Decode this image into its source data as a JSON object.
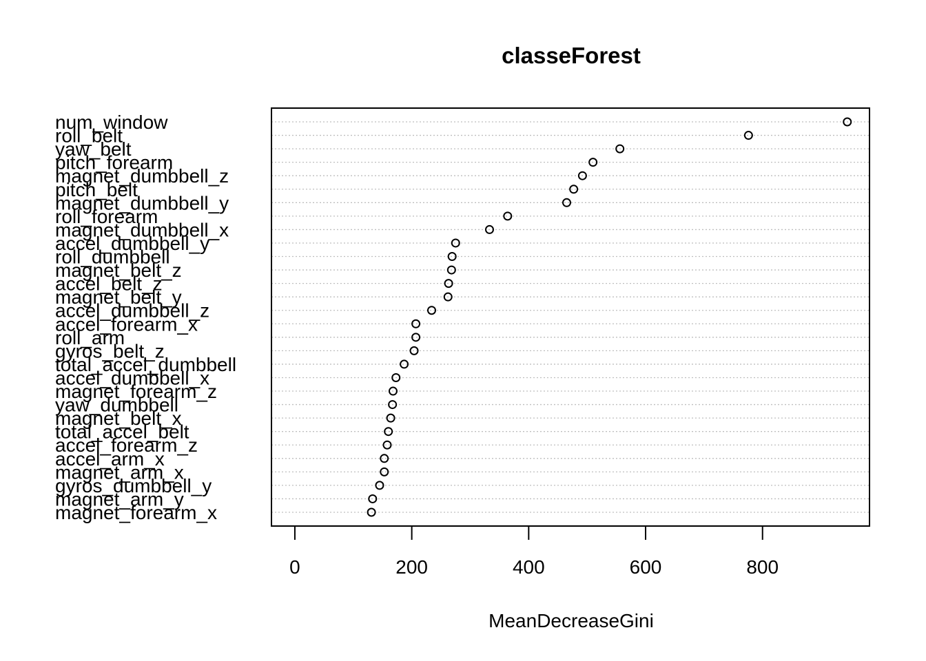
{
  "chart_data": {
    "type": "scatter",
    "title": "classeForest",
    "xlabel": "MeanDecreaseGini",
    "ylabel": "",
    "xlim": [
      -40,
      983
    ],
    "xticks": [
      0,
      200,
      400,
      600,
      800
    ],
    "grid": "dotted-horizontal",
    "marker": "open-circle",
    "categories": [
      "num_window",
      "roll_belt",
      "yaw_belt",
      "pitch_forearm",
      "magnet_dumbbell_z",
      "pitch_belt",
      "magnet_dumbbell_y",
      "roll_forearm",
      "magnet_dumbbell_x",
      "accel_dumbbell_y",
      "roll_dumbbell",
      "magnet_belt_z",
      "accel_belt_z",
      "magnet_belt_y",
      "accel_dumbbell_z",
      "accel_forearm_x",
      "roll_arm",
      "gyros_belt_z",
      "total_accel_dumbbell",
      "accel_dumbbell_x",
      "magnet_forearm_z",
      "yaw_dumbbell",
      "magnet_belt_x",
      "total_accel_belt",
      "accel_forearm_z",
      "accel_arm_x",
      "magnet_arm_x",
      "gyros_dumbbell_y",
      "magnet_arm_y",
      "magnet_forearm_x"
    ],
    "values": [
      945,
      776,
      556,
      510,
      492,
      477,
      465,
      364,
      333,
      275,
      269,
      268,
      263,
      262,
      234,
      207,
      207,
      204,
      187,
      173,
      168,
      167,
      164,
      160,
      158,
      153,
      153,
      145,
      133,
      131
    ]
  }
}
